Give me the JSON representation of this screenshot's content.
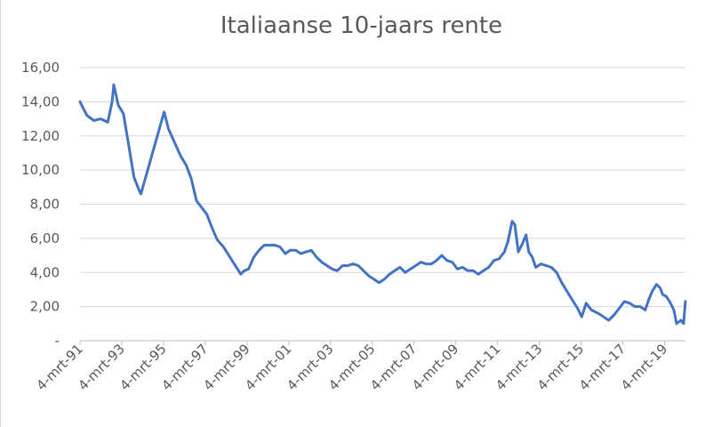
{
  "chart_data": {
    "type": "line",
    "title": "Italiaanse 10-jaars rente",
    "xlabel": "",
    "ylabel": "",
    "y_tick_labels": [
      "-",
      "2,00",
      "4,00",
      "6,00",
      "8,00",
      "10,00",
      "12,00",
      "14,00",
      "16,00"
    ],
    "x_tick_labels": [
      "4-mrt-91",
      "4-mrt-93",
      "4-mrt-95",
      "4-mrt-97",
      "4-mrt-99",
      "4-mrt-01",
      "4-mrt-03",
      "4-mrt-05",
      "4-mrt-07",
      "4-mrt-09",
      "4-mrt-11",
      "4-mrt-13",
      "4-mrt-15",
      "4-mrt-17",
      "4-mrt-19"
    ],
    "ylim": [
      0,
      16
    ],
    "xlim": [
      "1991-03-04",
      "2020-03-04"
    ],
    "grid": true,
    "legend": "none",
    "series": [
      {
        "color": "#4472c4",
        "x": [
          "1991-03-04",
          "1991-07-01",
          "1991-11-01",
          "1992-03-01",
          "1992-07-01",
          "1992-09-15",
          "1992-10-15",
          "1993-01-01",
          "1993-04-01",
          "1993-07-01",
          "1993-10-01",
          "1994-01-01",
          "1994-02-01",
          "1995-03-15",
          "1995-06-01",
          "1995-09-01",
          "1996-01-01",
          "1996-04-01",
          "1996-07-01",
          "1996-10-01",
          "1997-01-01",
          "1997-04-01",
          "1997-07-01",
          "1997-10-01",
          "1998-01-15",
          "1998-11-15",
          "1999-01-15",
          "1999-04-01",
          "1999-07-01",
          "1999-10-01",
          "2000-01-01",
          "2000-04-01",
          "2000-07-01",
          "2000-10-01",
          "2001-01-01",
          "2001-04-01",
          "2001-07-01",
          "2001-10-01",
          "2002-01-01",
          "2002-04-01",
          "2002-07-01",
          "2002-10-01",
          "2003-01-01",
          "2003-04-01",
          "2003-07-01",
          "2003-10-01",
          "2004-01-01",
          "2004-04-01",
          "2004-07-01",
          "2004-10-01",
          "2005-01-01",
          "2005-04-01",
          "2005-07-01",
          "2005-10-01",
          "2006-01-01",
          "2006-04-01",
          "2006-07-01",
          "2006-10-01",
          "2007-01-01",
          "2007-04-01",
          "2007-07-01",
          "2007-10-01",
          "2008-01-01",
          "2008-04-01",
          "2008-07-01",
          "2008-10-01",
          "2009-01-01",
          "2009-04-01",
          "2009-07-01",
          "2009-10-01",
          "2010-01-01",
          "2010-04-01",
          "2010-07-01",
          "2010-10-01",
          "2011-01-01",
          "2011-04-01",
          "2011-07-01",
          "2011-09-01",
          "2011-11-15",
          "2012-01-01",
          "2012-03-01",
          "2012-05-01",
          "2012-07-15",
          "2012-09-01",
          "2012-11-01",
          "2013-01-01",
          "2013-04-01",
          "2013-07-01",
          "2013-10-01",
          "2014-01-01",
          "2014-04-01",
          "2014-07-01",
          "2014-10-01",
          "2015-01-01",
          "2015-03-15",
          "2015-06-01",
          "2015-09-01",
          "2016-01-01",
          "2016-04-01",
          "2016-07-01",
          "2016-10-01",
          "2017-01-01",
          "2017-04-01",
          "2017-07-01",
          "2017-10-01",
          "2018-01-01",
          "2018-04-01",
          "2018-06-01",
          "2018-08-01",
          "2018-10-15",
          "2018-12-15",
          "2019-02-01",
          "2019-04-01",
          "2019-06-01",
          "2019-08-15",
          "2019-10-01",
          "2019-12-15",
          "2020-02-01",
          "2020-03-04"
        ],
        "y": [
          14.0,
          13.2,
          12.9,
          13.0,
          12.8,
          14.0,
          15.0,
          13.8,
          13.3,
          11.5,
          9.6,
          8.8,
          8.6,
          13.4,
          12.4,
          11.7,
          10.8,
          10.3,
          9.5,
          8.2,
          7.8,
          7.4,
          6.6,
          5.9,
          5.5,
          3.9,
          4.1,
          4.2,
          4.9,
          5.3,
          5.6,
          5.6,
          5.6,
          5.5,
          5.1,
          5.3,
          5.3,
          5.1,
          5.2,
          5.3,
          4.9,
          4.6,
          4.4,
          4.2,
          4.1,
          4.4,
          4.4,
          4.5,
          4.4,
          4.1,
          3.8,
          3.6,
          3.4,
          3.6,
          3.9,
          4.1,
          4.3,
          4.0,
          4.2,
          4.4,
          4.6,
          4.5,
          4.5,
          4.7,
          5.0,
          4.7,
          4.6,
          4.2,
          4.3,
          4.1,
          4.1,
          3.9,
          4.1,
          4.3,
          4.7,
          4.8,
          5.2,
          5.8,
          7.0,
          6.8,
          5.2,
          5.6,
          6.2,
          5.2,
          4.9,
          4.3,
          4.5,
          4.4,
          4.3,
          4.0,
          3.4,
          2.9,
          2.4,
          1.9,
          1.4,
          2.2,
          1.8,
          1.6,
          1.4,
          1.2,
          1.5,
          1.9,
          2.3,
          2.2,
          2.0,
          2.0,
          1.8,
          2.4,
          2.9,
          3.3,
          3.1,
          2.7,
          2.6,
          2.3,
          1.8,
          1.0,
          1.2,
          1.0,
          2.3
        ]
      }
    ]
  }
}
